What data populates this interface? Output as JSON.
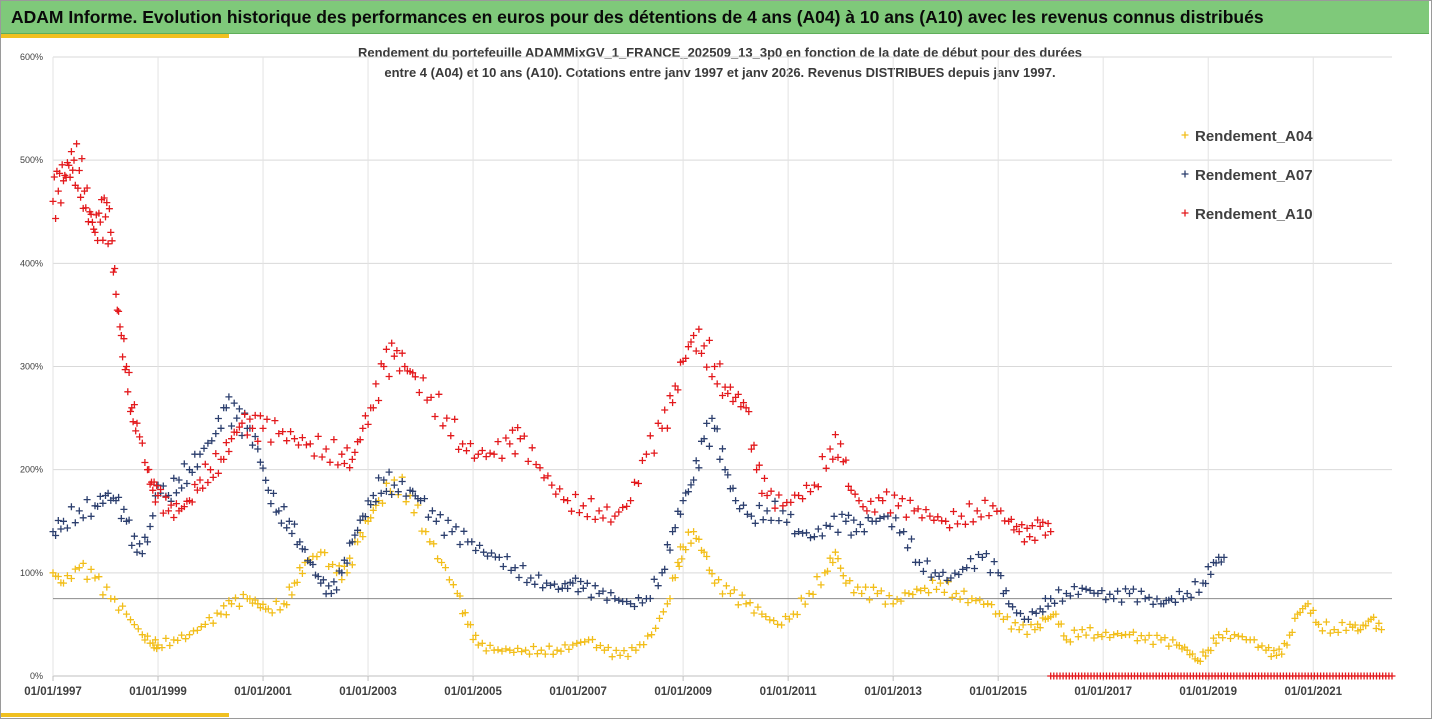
{
  "header": {
    "title": "ADAM Informe. Evolution historique des performances en euros pour des détentions de 4 ans (A04) à 10 ans (A10) avec les revenus connus distribués"
  },
  "colors": {
    "header_bg": "#7fc97a",
    "accent": "#f0c020",
    "a04": "#f2be1a",
    "a07": "#2c3f6e",
    "a10": "#e3191c"
  },
  "chart_data": {
    "type": "scatter",
    "title_line1": "Rendement du portefeuille ADAMMixGV_1_FRANCE_202509_13_3p0  en fonction de la date de début pour des durées",
    "title_line2": "entre 4 (A04) et 10 ans (A10). Cotations entre janv 1997 et janv 2026. Revenus DISTRIBUES depuis janv 1997.",
    "xlabel": "",
    "ylabel": "",
    "x_unit": "year",
    "xlim": [
      1997.0,
      2022.5
    ],
    "ylim": [
      0,
      600
    ],
    "y_ticks": [
      0,
      100,
      200,
      300,
      400,
      500,
      600
    ],
    "y_tick_labels": [
      "0%",
      "100%",
      "200%",
      "300%",
      "400%",
      "500%",
      "600%"
    ],
    "x_ticks": [
      1997,
      1999,
      2001,
      2003,
      2005,
      2007,
      2009,
      2011,
      2013,
      2015,
      2017,
      2019,
      2021
    ],
    "x_tick_labels": [
      "01/01/1997",
      "01/01/1999",
      "01/01/2001",
      "01/01/2003",
      "01/01/2005",
      "01/01/2007",
      "01/01/2009",
      "01/01/2011",
      "01/01/2013",
      "01/01/2015",
      "01/01/2017",
      "01/01/2019",
      "01/01/2021"
    ],
    "reference_line": 75,
    "grid": "horizontal",
    "legend_position": "top-right",
    "series": [
      {
        "name": "Rendement_A04",
        "color": "#f2be1a",
        "points": [
          [
            1997.0,
            100
          ],
          [
            1997.2,
            90
          ],
          [
            1997.5,
            105
          ],
          [
            1997.8,
            95
          ],
          [
            1998.1,
            75
          ],
          [
            1998.4,
            60
          ],
          [
            1998.7,
            40
          ],
          [
            1998.9,
            32
          ],
          [
            1999.0,
            30
          ],
          [
            1999.3,
            35
          ],
          [
            1999.6,
            40
          ],
          [
            1999.9,
            50
          ],
          [
            2000.2,
            60
          ],
          [
            2000.4,
            70
          ],
          [
            2000.7,
            75
          ],
          [
            2000.9,
            70
          ],
          [
            2001.1,
            65
          ],
          [
            2001.4,
            70
          ],
          [
            2001.6,
            90
          ],
          [
            2001.8,
            110
          ],
          [
            2002.1,
            120
          ],
          [
            2002.4,
            100
          ],
          [
            2002.6,
            100
          ],
          [
            2002.8,
            130
          ],
          [
            2003.0,
            150
          ],
          [
            2003.2,
            170
          ],
          [
            2003.5,
            190
          ],
          [
            2003.8,
            175
          ],
          [
            2004.1,
            140
          ],
          [
            2004.4,
            110
          ],
          [
            2004.7,
            80
          ],
          [
            2004.9,
            50
          ],
          [
            2005.1,
            30
          ],
          [
            2005.4,
            25
          ],
          [
            2005.7,
            25
          ],
          [
            2006.0,
            25
          ],
          [
            2006.3,
            25
          ],
          [
            2006.6,
            25
          ],
          [
            2006.9,
            30
          ],
          [
            2007.2,
            35
          ],
          [
            2007.5,
            25
          ],
          [
            2007.8,
            20
          ],
          [
            2008.1,
            25
          ],
          [
            2008.4,
            40
          ],
          [
            2008.7,
            70
          ],
          [
            2008.9,
            110
          ],
          [
            2009.0,
            125
          ],
          [
            2009.2,
            140
          ],
          [
            2009.4,
            120
          ],
          [
            2009.6,
            90
          ],
          [
            2009.9,
            80
          ],
          [
            2010.2,
            70
          ],
          [
            2010.5,
            60
          ],
          [
            2010.8,
            50
          ],
          [
            2011.1,
            60
          ],
          [
            2011.4,
            80
          ],
          [
            2011.7,
            100
          ],
          [
            2011.9,
            120
          ],
          [
            2012.1,
            90
          ],
          [
            2012.4,
            80
          ],
          [
            2012.7,
            80
          ],
          [
            2013.0,
            70
          ],
          [
            2013.3,
            80
          ],
          [
            2013.6,
            85
          ],
          [
            2013.9,
            90
          ],
          [
            2014.2,
            80
          ],
          [
            2014.5,
            75
          ],
          [
            2014.8,
            70
          ],
          [
            2015.1,
            55
          ],
          [
            2015.4,
            45
          ],
          [
            2015.7,
            45
          ],
          [
            2015.9,
            55
          ],
          [
            2016.1,
            60
          ],
          [
            2016.3,
            35
          ],
          [
            2016.6,
            45
          ],
          [
            2016.9,
            40
          ],
          [
            2017.2,
            40
          ],
          [
            2017.5,
            40
          ],
          [
            2017.8,
            35
          ],
          [
            2018.1,
            35
          ],
          [
            2018.4,
            30
          ],
          [
            2018.6,
            25
          ],
          [
            2018.8,
            15
          ],
          [
            2019.0,
            25
          ],
          [
            2019.2,
            40
          ],
          [
            2019.5,
            40
          ],
          [
            2019.8,
            35
          ],
          [
            2020.1,
            25
          ],
          [
            2020.3,
            20
          ],
          [
            2020.5,
            30
          ],
          [
            2020.7,
            60
          ],
          [
            2020.9,
            70
          ],
          [
            2021.1,
            50
          ],
          [
            2021.4,
            45
          ],
          [
            2021.7,
            50
          ],
          [
            2021.9,
            45
          ],
          [
            2022.1,
            55
          ],
          [
            2022.3,
            45
          ]
        ]
      },
      {
        "name": "Rendement_A07",
        "color": "#2c3f6e",
        "points": [
          [
            1997.0,
            140
          ],
          [
            1997.2,
            150
          ],
          [
            1997.5,
            160
          ],
          [
            1997.8,
            165
          ],
          [
            1998.0,
            175
          ],
          [
            1998.2,
            170
          ],
          [
            1998.4,
            150
          ],
          [
            1998.6,
            120
          ],
          [
            1998.8,
            130
          ],
          [
            1999.0,
            185
          ],
          [
            1999.2,
            175
          ],
          [
            1999.4,
            190
          ],
          [
            1999.6,
            200
          ],
          [
            1999.8,
            215
          ],
          [
            2000.1,
            235
          ],
          [
            2000.3,
            260
          ],
          [
            2000.5,
            250
          ],
          [
            2000.7,
            240
          ],
          [
            2000.9,
            220
          ],
          [
            2001.1,
            180
          ],
          [
            2001.3,
            160
          ],
          [
            2001.5,
            150
          ],
          [
            2001.7,
            130
          ],
          [
            2001.9,
            110
          ],
          [
            2002.1,
            90
          ],
          [
            2002.3,
            80
          ],
          [
            2002.5,
            100
          ],
          [
            2002.7,
            130
          ],
          [
            2002.9,
            155
          ],
          [
            2003.1,
            175
          ],
          [
            2003.3,
            190
          ],
          [
            2003.5,
            185
          ],
          [
            2003.8,
            180
          ],
          [
            2004.0,
            170
          ],
          [
            2004.3,
            150
          ],
          [
            2004.6,
            140
          ],
          [
            2004.9,
            130
          ],
          [
            2005.2,
            120
          ],
          [
            2005.5,
            115
          ],
          [
            2005.8,
            105
          ],
          [
            2006.1,
            95
          ],
          [
            2006.4,
            90
          ],
          [
            2006.7,
            85
          ],
          [
            2006.9,
            90
          ],
          [
            2007.1,
            85
          ],
          [
            2007.4,
            80
          ],
          [
            2007.7,
            75
          ],
          [
            2008.0,
            70
          ],
          [
            2008.3,
            75
          ],
          [
            2008.6,
            100
          ],
          [
            2008.8,
            140
          ],
          [
            2009.0,
            170
          ],
          [
            2009.2,
            190
          ],
          [
            2009.4,
            230
          ],
          [
            2009.6,
            240
          ],
          [
            2009.8,
            200
          ],
          [
            2010.0,
            170
          ],
          [
            2010.3,
            155
          ],
          [
            2010.6,
            160
          ],
          [
            2010.9,
            160
          ],
          [
            2011.2,
            140
          ],
          [
            2011.5,
            135
          ],
          [
            2011.8,
            145
          ],
          [
            2012.1,
            150
          ],
          [
            2012.3,
            140
          ],
          [
            2012.6,
            150
          ],
          [
            2012.9,
            155
          ],
          [
            2013.2,
            140
          ],
          [
            2013.5,
            110
          ],
          [
            2013.8,
            100
          ],
          [
            2014.1,
            95
          ],
          [
            2014.4,
            105
          ],
          [
            2014.7,
            115
          ],
          [
            2015.0,
            100
          ],
          [
            2015.2,
            70
          ],
          [
            2015.5,
            55
          ],
          [
            2015.8,
            65
          ],
          [
            2016.0,
            75
          ],
          [
            2016.3,
            80
          ],
          [
            2016.6,
            85
          ],
          [
            2016.9,
            80
          ],
          [
            2017.2,
            75
          ],
          [
            2017.5,
            80
          ],
          [
            2017.8,
            75
          ],
          [
            2018.1,
            70
          ],
          [
            2018.3,
            75
          ],
          [
            2018.6,
            80
          ],
          [
            2018.9,
            90
          ],
          [
            2019.1,
            110
          ],
          [
            2019.3,
            115
          ]
        ]
      },
      {
        "name": "Rendement_A10",
        "color": "#e3191c",
        "points": [
          [
            1997.0,
            460
          ],
          [
            1997.1,
            470
          ],
          [
            1997.2,
            480
          ],
          [
            1997.3,
            495
          ],
          [
            1997.4,
            500
          ],
          [
            1997.5,
            490
          ],
          [
            1997.6,
            470
          ],
          [
            1997.7,
            450
          ],
          [
            1997.8,
            430
          ],
          [
            1997.9,
            440
          ],
          [
            1998.0,
            445
          ],
          [
            1998.1,
            430
          ],
          [
            1998.2,
            370
          ],
          [
            1998.3,
            330
          ],
          [
            1998.4,
            300
          ],
          [
            1998.5,
            260
          ],
          [
            1998.6,
            245
          ],
          [
            1998.8,
            200
          ],
          [
            1998.9,
            180
          ],
          [
            1999.0,
            175
          ],
          [
            1999.2,
            160
          ],
          [
            1999.4,
            160
          ],
          [
            1999.6,
            170
          ],
          [
            1999.8,
            190
          ],
          [
            2000.0,
            200
          ],
          [
            2000.2,
            210
          ],
          [
            2000.4,
            230
          ],
          [
            2000.6,
            245
          ],
          [
            2000.8,
            240
          ],
          [
            2001.0,
            240
          ],
          [
            2001.3,
            235
          ],
          [
            2001.6,
            230
          ],
          [
            2001.9,
            225
          ],
          [
            2002.2,
            220
          ],
          [
            2002.5,
            215
          ],
          [
            2002.7,
            210
          ],
          [
            2002.9,
            240
          ],
          [
            2003.1,
            260
          ],
          [
            2003.3,
            300
          ],
          [
            2003.5,
            310
          ],
          [
            2003.7,
            300
          ],
          [
            2003.9,
            290
          ],
          [
            2004.2,
            270
          ],
          [
            2004.5,
            250
          ],
          [
            2004.8,
            225
          ],
          [
            2005.1,
            215
          ],
          [
            2005.4,
            215
          ],
          [
            2005.7,
            225
          ],
          [
            2005.9,
            230
          ],
          [
            2006.2,
            205
          ],
          [
            2006.5,
            185
          ],
          [
            2006.8,
            170
          ],
          [
            2007.1,
            165
          ],
          [
            2007.4,
            160
          ],
          [
            2007.7,
            155
          ],
          [
            2008.0,
            170
          ],
          [
            2008.3,
            215
          ],
          [
            2008.6,
            240
          ],
          [
            2008.8,
            265
          ],
          [
            2009.0,
            305
          ],
          [
            2009.2,
            330
          ],
          [
            2009.4,
            320
          ],
          [
            2009.6,
            300
          ],
          [
            2009.8,
            280
          ],
          [
            2010.0,
            270
          ],
          [
            2010.2,
            260
          ],
          [
            2010.4,
            200
          ],
          [
            2010.6,
            175
          ],
          [
            2010.9,
            165
          ],
          [
            2011.2,
            175
          ],
          [
            2011.5,
            185
          ],
          [
            2011.8,
            220
          ],
          [
            2012.0,
            225
          ],
          [
            2012.2,
            180
          ],
          [
            2012.5,
            160
          ],
          [
            2012.8,
            170
          ],
          [
            2013.1,
            165
          ],
          [
            2013.4,
            160
          ],
          [
            2013.7,
            155
          ],
          [
            2014.0,
            150
          ],
          [
            2014.3,
            155
          ],
          [
            2014.6,
            160
          ],
          [
            2014.9,
            165
          ],
          [
            2015.2,
            150
          ],
          [
            2015.4,
            140
          ],
          [
            2015.6,
            135
          ],
          [
            2015.8,
            145
          ],
          [
            2016.0,
            140
          ]
        ]
      }
    ],
    "zero_band": {
      "name": "Rendement_A10",
      "from": 2016.0,
      "to": 2022.5,
      "value": 0
    }
  }
}
